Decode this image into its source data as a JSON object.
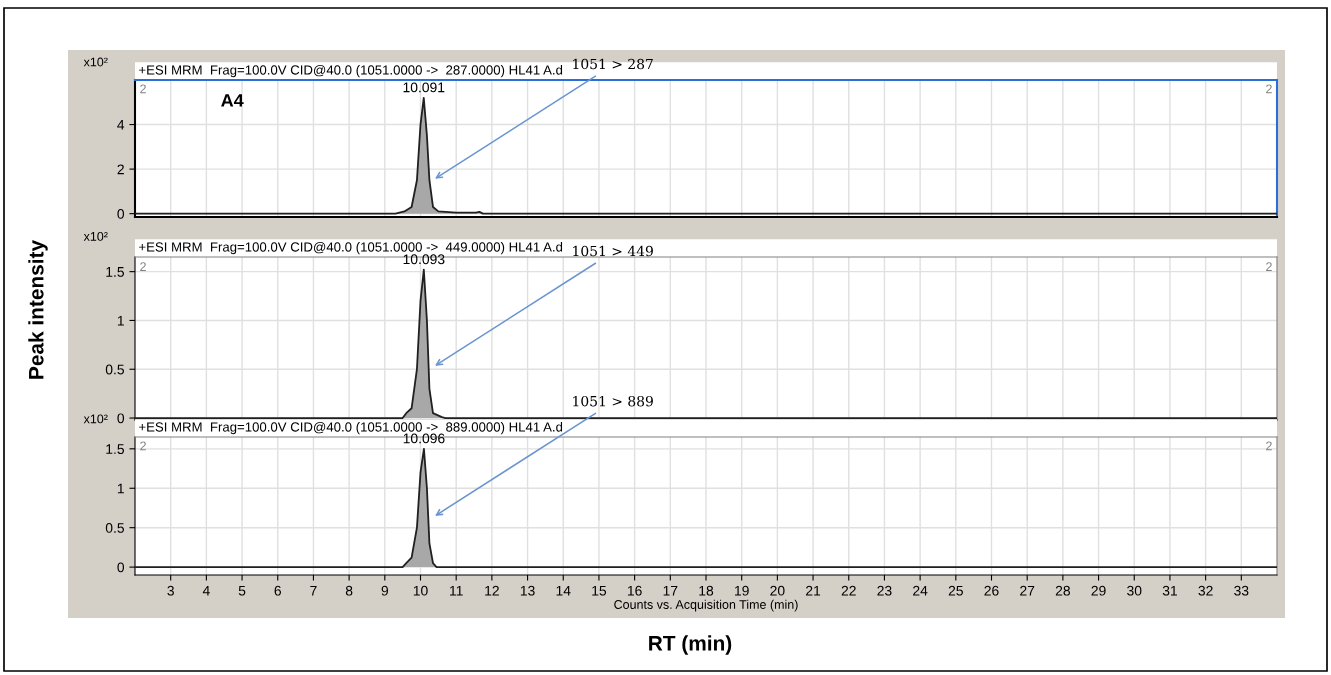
{
  "chart_data": [
    {
      "type": "area",
      "title": "+ESI MRM  Frag=100.0V CID@40.0 (1051.0000 ->  287.0000) HL41 A.d",
      "tick_labels": "y",
      "grid": true,
      "x": [
        2.0,
        9.3,
        9.55,
        9.75,
        9.9,
        10.0,
        10.091,
        10.18,
        10.25,
        10.35,
        10.5,
        11.0,
        11.55,
        11.65,
        11.75,
        34.0
      ],
      "series": [
        {
          "color": "#a8a8a8",
          "values": [
            0,
            0,
            0.1,
            0.3,
            1.5,
            4.0,
            5.2,
            3.5,
            1.5,
            0.3,
            0.1,
            0.05,
            0.05,
            0.08,
            0,
            0
          ]
        }
      ],
      "xlim": [
        2.0,
        34.0
      ],
      "xticks": [
        3,
        4,
        5,
        6,
        7,
        8,
        9,
        10,
        11,
        12,
        13,
        14,
        15,
        16,
        17,
        18,
        19,
        20,
        21,
        22,
        23,
        24,
        25,
        26,
        27,
        28,
        29,
        30,
        31,
        32,
        33
      ],
      "ylim": [
        -0.15,
        6.0
      ],
      "yticks": [
        0,
        2,
        4
      ],
      "annotations": [
        "x10²",
        "2",
        "2",
        "A4",
        {
          "text": "10.091",
          "x": 10.091,
          "y": 5.2
        },
        {
          "text": "1051 > 287",
          "x": 10.34,
          "y": 1.5
        }
      ]
    },
    {
      "type": "area",
      "title": "+ESI MRM  Frag=100.0V CID@40.0 (1051.0000 ->  449.0000) HL41 A.d",
      "tick_labels": "y",
      "grid": true,
      "ylabel": "Peak intensity",
      "x": [
        2.0,
        9.5,
        9.6,
        9.75,
        9.9,
        10.0,
        10.093,
        10.18,
        10.25,
        10.35,
        10.6,
        10.7,
        34.0
      ],
      "series": [
        {
          "color": "#a8a8a8",
          "values": [
            0,
            0,
            0.05,
            0.1,
            0.5,
            1.2,
            1.52,
            1.0,
            0.3,
            0.05,
            0.01,
            0,
            0
          ]
        }
      ],
      "xlim": [
        2.0,
        34.0
      ],
      "xticks": [
        3,
        4,
        5,
        6,
        7,
        8,
        9,
        10,
        11,
        12,
        13,
        14,
        15,
        16,
        17,
        18,
        19,
        20,
        21,
        22,
        23,
        24,
        25,
        26,
        27,
        28,
        29,
        30,
        31,
        32,
        33
      ],
      "ylim": [
        -0.02,
        1.65
      ],
      "yticks": [
        0,
        0.5,
        1,
        1.5
      ],
      "annotations": [
        "x10²",
        "2",
        "2",
        {
          "text": "10.093",
          "x": 10.093,
          "y": 1.52
        },
        {
          "text": "1051 > 449",
          "x": 10.34,
          "y": 0.52
        }
      ]
    },
    {
      "type": "area",
      "title": "+ESI MRM  Frag=100.0V CID@40.0 (1051.0000 ->  889.0000) HL41 A.d",
      "grid": true,
      "xlabel": "Counts vs. Acquisition Time (min)",
      "x": [
        2.0,
        9.5,
        9.6,
        9.75,
        9.9,
        10.0,
        10.096,
        10.18,
        10.25,
        10.35,
        10.45,
        34.0
      ],
      "series": [
        {
          "color": "#a8a8a8",
          "values": [
            0,
            0,
            0.05,
            0.12,
            0.5,
            1.2,
            1.5,
            1.0,
            0.3,
            0.05,
            0,
            0
          ]
        }
      ],
      "xlim": [
        2.0,
        34.0
      ],
      "xticks": [
        3,
        4,
        5,
        6,
        7,
        8,
        9,
        10,
        11,
        12,
        13,
        14,
        15,
        16,
        17,
        18,
        19,
        20,
        21,
        22,
        23,
        24,
        25,
        26,
        27,
        28,
        29,
        30,
        31,
        32,
        33
      ],
      "ylim": [
        -0.1,
        1.65
      ],
      "yticks": [
        0,
        0.5,
        1,
        1.5
      ],
      "annotations": [
        "x10²",
        "2",
        "2",
        "RT (min)",
        {
          "text": "10.096",
          "x": 10.096,
          "y": 1.5
        },
        {
          "text": "1051 > 889",
          "x": 10.34,
          "y": 0.63
        }
      ]
    }
  ]
}
